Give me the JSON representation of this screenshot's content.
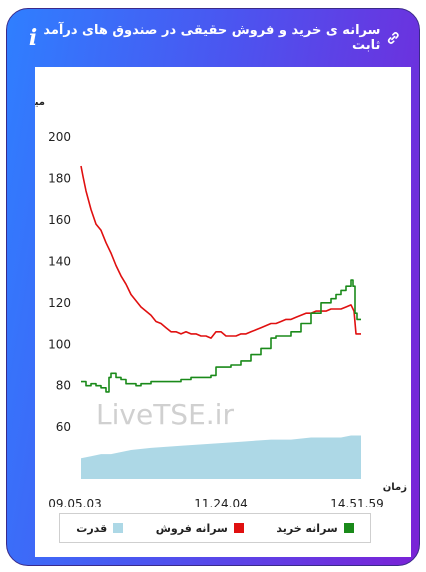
{
  "header": {
    "title": "سرانه ی خرید و فروش حقیقی در صندوق های درآمد ثابت",
    "info_icon": "info-icon",
    "link_icon": "link-icon"
  },
  "watermark": "LiveTSE.ir",
  "colors": {
    "sell": "#e01010",
    "buy": "#1a8a1a",
    "power": "#add8e6"
  },
  "chart_data": {
    "type": "line",
    "title": "سرانه ی خرید و فروش حقیقی در صندوق های درآمد ثابت",
    "ylabel": "میلیون تومان",
    "xlabel": "زمان",
    "ylim": [
      35,
      200
    ],
    "yticks": [
      60,
      80,
      100,
      120,
      140,
      160,
      180,
      200
    ],
    "xticks": [
      "09.05.03",
      "11.24.04",
      "14.51.59"
    ],
    "grid": false,
    "legend_position": "bottom",
    "legend": [
      "سرانه خرید",
      "سرانه فروش",
      "قدرت"
    ],
    "series": [
      {
        "name": "سرانه فروش",
        "color": "#e01010",
        "x": [
          0,
          2,
          5,
          10,
          15,
          20,
          25,
          30,
          35,
          40,
          45,
          50,
          55,
          60,
          65,
          70,
          75,
          80,
          85,
          90,
          95,
          100,
          105,
          110,
          115,
          120,
          125,
          130,
          135,
          140,
          145,
          150,
          155,
          160,
          165,
          170,
          175,
          180,
          185,
          190,
          195,
          200,
          205,
          210,
          215,
          220,
          225,
          230,
          235,
          240,
          245,
          250,
          255,
          260,
          265,
          270,
          273,
          275,
          280
        ],
        "y": [
          186,
          181,
          174,
          165,
          158,
          155,
          149,
          144,
          138,
          133,
          129,
          124,
          121,
          118,
          116,
          114,
          111,
          110,
          108,
          106,
          106,
          105,
          106,
          105,
          105,
          104,
          104,
          103,
          106,
          106,
          104,
          104,
          104,
          105,
          105,
          106,
          107,
          108,
          109,
          110,
          110,
          111,
          112,
          112,
          113,
          114,
          115,
          115,
          116,
          116,
          116,
          117,
          117,
          117,
          118,
          119,
          116,
          105,
          105
        ]
      },
      {
        "name": "سرانه خرید",
        "color": "#1a8a1a",
        "x": [
          0,
          5,
          10,
          15,
          20,
          25,
          28,
          30,
          35,
          40,
          45,
          50,
          55,
          60,
          70,
          80,
          90,
          100,
          110,
          120,
          130,
          135,
          140,
          150,
          160,
          170,
          180,
          190,
          195,
          200,
          210,
          220,
          230,
          240,
          250,
          255,
          260,
          265,
          270,
          272,
          274,
          276,
          280
        ],
        "y": [
          82,
          80,
          81,
          80,
          79,
          77,
          84,
          86,
          84,
          83,
          81,
          81,
          80,
          81,
          82,
          82,
          82,
          83,
          84,
          84,
          85,
          89,
          89,
          90,
          92,
          95,
          98,
          103,
          104,
          104,
          106,
          110,
          115,
          120,
          122,
          124,
          126,
          128,
          131,
          128,
          115,
          112,
          112
        ]
      },
      {
        "name": "قدرت",
        "color": "#add8e6",
        "type": "area",
        "x": [
          0,
          10,
          20,
          30,
          50,
          70,
          100,
          130,
          160,
          190,
          210,
          230,
          250,
          260,
          270,
          280
        ],
        "y": [
          45,
          46,
          47,
          47,
          49,
          50,
          51,
          52,
          53,
          54,
          54,
          55,
          55,
          55,
          56,
          56
        ]
      }
    ]
  }
}
